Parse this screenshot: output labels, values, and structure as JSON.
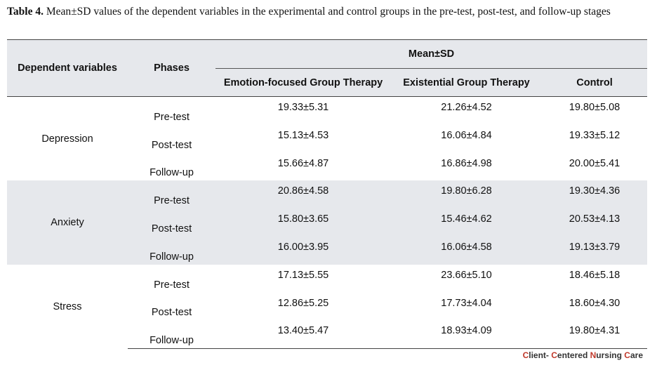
{
  "caption": {
    "label": "Table 4.",
    "text": " Mean±SD values of the dependent variables in the experimental and control groups in the pre-test, post-test, and follow-up stages"
  },
  "table": {
    "header_dependent": "Dependent variables",
    "header_phases": "Phases",
    "header_group": "Mean±SD",
    "columns": [
      "Emotion-focused Group Therapy",
      "Existential Group Therapy",
      "Control"
    ],
    "groups": [
      {
        "name": "Depression",
        "rows": [
          {
            "phase": "Pre-test",
            "values": [
              "19.33±5.31",
              "21.26±4.52",
              "19.80±5.08"
            ]
          },
          {
            "phase": "Post-test",
            "values": [
              "15.13±4.53",
              "16.06±4.84",
              "19.33±5.12"
            ]
          },
          {
            "phase": "Follow-up",
            "values": [
              "15.66±4.87",
              "16.86±4.98",
              "20.00±5.41"
            ]
          }
        ]
      },
      {
        "name": "Anxiety",
        "rows": [
          {
            "phase": "Pre-test",
            "values": [
              "20.86±4.58",
              "19.80±6.28",
              "19.30±4.36"
            ]
          },
          {
            "phase": "Post-test",
            "values": [
              "15.80±3.65",
              "15.46±4.62",
              "20.53±4.13"
            ]
          },
          {
            "phase": "Follow-up",
            "values": [
              "16.00±3.95",
              "16.06±4.58",
              "19.13±3.79"
            ]
          }
        ]
      },
      {
        "name": "Stress",
        "rows": [
          {
            "phase": "Pre-test",
            "values": [
              "17.13±5.55",
              "23.66±5.10",
              "18.46±5.18"
            ]
          },
          {
            "phase": "Post-test",
            "values": [
              "12.86±5.25",
              "17.73±4.04",
              "18.60±4.30"
            ]
          },
          {
            "phase": "Follow-up",
            "values": [
              "13.40±5.47",
              "18.93±4.09",
              "19.80±4.31"
            ]
          }
        ]
      }
    ]
  },
  "footer": {
    "c1": "C",
    "t1": "lient- ",
    "c2": "C",
    "t2": "entered ",
    "c3": "N",
    "t3": "ursing ",
    "c4": "C",
    "t4": "are"
  }
}
